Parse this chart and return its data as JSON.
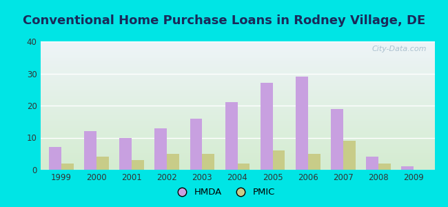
{
  "title": "Conventional Home Purchase Loans in Rodney Village, DE",
  "years": [
    1999,
    2000,
    2001,
    2002,
    2003,
    2004,
    2005,
    2006,
    2007,
    2008,
    2009
  ],
  "hmda": [
    7,
    12,
    10,
    13,
    16,
    21,
    27,
    29,
    19,
    4,
    1
  ],
  "pmic": [
    2,
    4,
    3,
    5,
    5,
    2,
    6,
    5,
    9,
    2,
    0
  ],
  "hmda_color": "#c8a0e0",
  "pmic_color": "#c8cc88",
  "ylim": [
    0,
    40
  ],
  "yticks": [
    0,
    10,
    20,
    30,
    40
  ],
  "background_outer": "#00e5e5",
  "background_inner_top": "#eef4f8",
  "background_inner_bottom": "#d4ecd0",
  "grid_color": "#ffffff",
  "title_fontsize": 13,
  "bar_width": 0.35,
  "watermark": "City-Data.com",
  "legend_labels": [
    "HMDA",
    "PMIC"
  ],
  "title_color": "#1a2a5a"
}
